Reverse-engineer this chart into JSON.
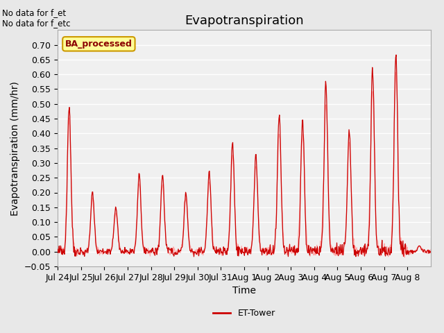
{
  "title": "Evapotranspiration",
  "xlabel": "Time",
  "ylabel": "Evapotranspiration (mm/hr)",
  "ylim": [
    -0.05,
    0.75
  ],
  "yticks": [
    -0.05,
    0.0,
    0.05,
    0.1,
    0.15,
    0.2,
    0.25,
    0.3,
    0.35,
    0.4,
    0.45,
    0.5,
    0.55,
    0.6,
    0.65,
    0.7
  ],
  "line_color": "#cc0000",
  "line_color_light": "#ffaaaa",
  "bg_color": "#e8e8e8",
  "plot_bg_color": "#f0f0f0",
  "grid_color": "#ffffff",
  "annotation_top_left": "No data for f_et\nNo data for f_etc",
  "legend_label": "ET-Tower",
  "legend_box_label": "BA_processed",
  "legend_box_color": "#ffff99",
  "legend_box_border": "#cc9900",
  "xtick_labels": [
    "Jul 24",
    "Jul 25",
    "Jul 26",
    "Jul 27",
    "Jul 28",
    "Jul 29",
    "Jul 30",
    "Jul 31",
    "Aug 1",
    "Aug 2",
    "Aug 3",
    "Aug 4",
    "Aug 5",
    "Aug 6",
    "Aug 7",
    "Aug 8"
  ],
  "title_fontsize": 13,
  "axis_label_fontsize": 10,
  "tick_fontsize": 9,
  "peak_heights": [
    0.5,
    0.2,
    0.15,
    0.26,
    0.26,
    0.2,
    0.27,
    0.37,
    0.33,
    0.46,
    0.45,
    0.57,
    0.42,
    0.62,
    0.68,
    0.02
  ],
  "n_days": 16,
  "pts_per_day": 48
}
